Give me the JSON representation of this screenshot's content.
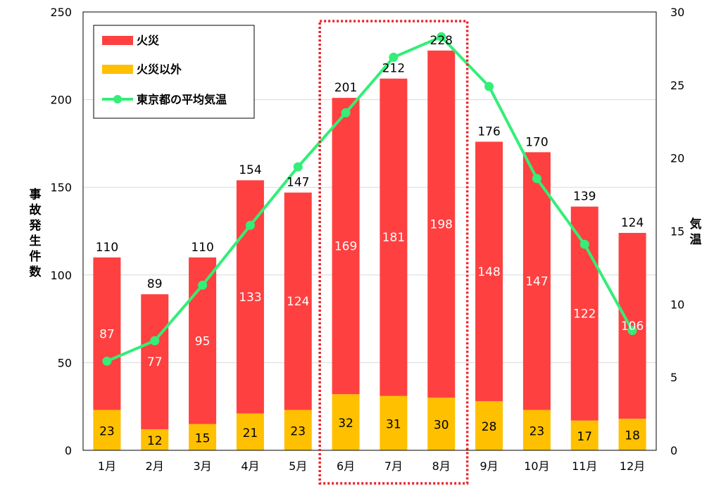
{
  "chart_data": {
    "type": "bar",
    "stacked": true,
    "categories": [
      "1月",
      "2月",
      "3月",
      "4月",
      "5月",
      "6月",
      "7月",
      "8月",
      "9月",
      "10月",
      "11月",
      "12月"
    ],
    "series": [
      {
        "name": "火災以外",
        "values": [
          23,
          12,
          15,
          21,
          23,
          32,
          31,
          30,
          28,
          23,
          17,
          18
        ],
        "color": "#ffc000"
      },
      {
        "name": "火災",
        "values": [
          87,
          77,
          95,
          133,
          124,
          169,
          181,
          198,
          148,
          147,
          122,
          106
        ],
        "color": "#ff4040"
      }
    ],
    "totals": [
      110,
      89,
      110,
      154,
      147,
      201,
      212,
      228,
      176,
      170,
      139,
      124
    ],
    "line_series": {
      "name": "東京都の平均気温",
      "axis": "right",
      "values": [
        6.1,
        7.5,
        11.3,
        15.4,
        19.4,
        23.1,
        26.9,
        28.3,
        24.9,
        18.6,
        14.1,
        8.2
      ],
      "color": "#33ee77"
    },
    "ylabel": "事故発生件数",
    "ylabel_right": "気温",
    "ylim": [
      0,
      250
    ],
    "yticks": [
      0,
      50,
      100,
      150,
      200,
      250
    ],
    "ylim_right": [
      0,
      30
    ],
    "yticks_right": [
      0,
      5,
      10,
      15,
      20,
      25,
      30
    ],
    "grid": true,
    "legend_position": "top-left",
    "legend": [
      "火災",
      "火災以外",
      "東京都の平均気温"
    ],
    "highlight": {
      "style": "red dotted box",
      "categories": [
        "6月",
        "7月",
        "8月"
      ]
    }
  }
}
